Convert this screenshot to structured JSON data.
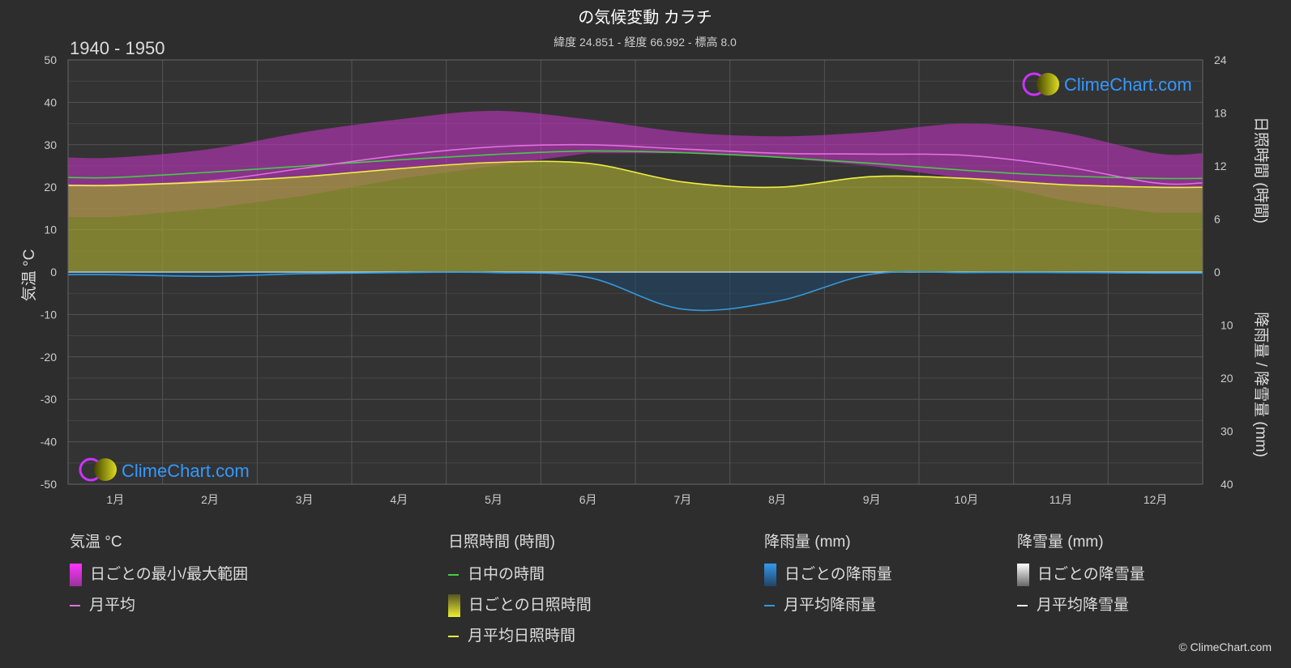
{
  "header": {
    "title": "の気候変動 カラチ",
    "subtitle": "緯度 24.851 - 経度 66.992 - 標高 8.0",
    "period": "1940 - 1950"
  },
  "axes": {
    "left_label": "気温 °C",
    "right_top_label": "日照時間 (時間)",
    "right_bottom_label": "降雨量 / 降雪量 (mm)"
  },
  "watermark": {
    "text": "ClimeChart.com"
  },
  "chart_data": {
    "type": "area",
    "months": [
      "1月",
      "2月",
      "3月",
      "4月",
      "5月",
      "6月",
      "7月",
      "8月",
      "9月",
      "10月",
      "11月",
      "12月"
    ],
    "temperature_axis": {
      "unit": "°C",
      "range": [
        -50,
        50
      ],
      "ticks": [
        "50",
        "40",
        "30",
        "20",
        "10",
        "0",
        "-10",
        "-20",
        "-30",
        "-40",
        "-50"
      ]
    },
    "sunshine_axis": {
      "unit": "時間",
      "range": [
        0,
        24
      ],
      "ticks": [
        "24",
        "18",
        "12",
        "6",
        "0"
      ]
    },
    "precip_axis": {
      "unit": "mm",
      "range": [
        0,
        40
      ],
      "ticks": [
        "0",
        "10",
        "20",
        "30",
        "40"
      ]
    },
    "grid": true,
    "series": [
      {
        "name": "月平均",
        "key": "temp_mean",
        "color": "#e070e0",
        "values": [
          20.5,
          21.5,
          24.5,
          27.5,
          29.5,
          30.0,
          29.0,
          28.0,
          27.8,
          27.5,
          25.0,
          21.0
        ]
      },
      {
        "name": "日中の時間",
        "key": "daylight",
        "color": "#44cc44",
        "values": [
          10.7,
          11.3,
          12.0,
          12.7,
          13.3,
          13.7,
          13.5,
          13.0,
          12.3,
          11.5,
          10.9,
          10.6
        ]
      },
      {
        "name": "月平均日照時間",
        "key": "sunshine",
        "color": "#eeee44",
        "values": [
          9.8,
          10.2,
          10.8,
          11.7,
          12.4,
          12.3,
          10.2,
          9.6,
          10.8,
          10.6,
          9.9,
          9.6
        ]
      },
      {
        "name": "月平均降雨量",
        "key": "rain",
        "color": "#3399dd",
        "values": [
          0.5,
          0.8,
          0.3,
          0.1,
          0.1,
          1.0,
          7.0,
          5.5,
          0.4,
          0.1,
          0.1,
          0.2
        ]
      }
    ],
    "temp_daily_range": {
      "min": [
        13,
        15,
        18,
        22,
        25,
        28,
        28,
        27,
        25,
        22,
        17,
        14
      ],
      "max": [
        27,
        29,
        33,
        36,
        38,
        36,
        33,
        32,
        33,
        35,
        33,
        28
      ]
    },
    "colors": {
      "background": "#2d2d2d",
      "range_band": "#cc33cc",
      "sunshine_fill": "#999933",
      "grid": "#555555"
    }
  },
  "legend": {
    "temperature": {
      "heading": "気温 °C",
      "range_label": "日ごとの最小/最大範囲",
      "mean_label": "月平均"
    },
    "sunshine": {
      "heading": "日照時間 (時間)",
      "daylight_label": "日中の時間",
      "daily_label": "日ごとの日照時間",
      "mean_label": "月平均日照時間"
    },
    "rain": {
      "heading": "降雨量 (mm)",
      "daily_label": "日ごとの降雨量",
      "mean_label": "月平均降雨量"
    },
    "snow": {
      "heading": "降雪量 (mm)",
      "daily_label": "日ごとの降雪量",
      "mean_label": "月平均降雪量"
    }
  },
  "copyright": "© ClimeChart.com"
}
